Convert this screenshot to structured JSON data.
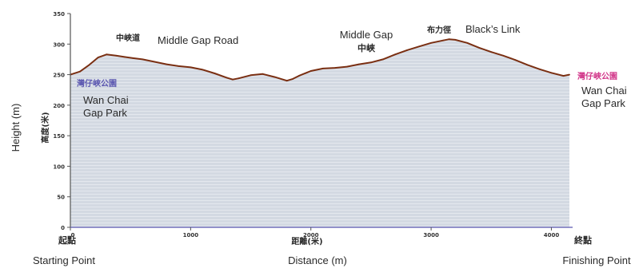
{
  "chart_data": {
    "type": "area",
    "x_unit_label_zh": "距離(米)",
    "y_unit_label_zh": "高度(米)",
    "xlabel": "Distance (m)",
    "ylabel": "Height (m)",
    "xlim": [
      0,
      4150
    ],
    "ylim": [
      0,
      350
    ],
    "x_ticks": [
      0,
      1000,
      2000,
      3000,
      4000
    ],
    "y_ticks": [
      0,
      50,
      100,
      150,
      200,
      250,
      300,
      350
    ],
    "x": [
      0,
      80,
      150,
      230,
      300,
      380,
      450,
      520,
      600,
      700,
      800,
      900,
      1000,
      1100,
      1200,
      1300,
      1350,
      1400,
      1500,
      1600,
      1700,
      1800,
      1850,
      1900,
      2000,
      2100,
      2200,
      2300,
      2400,
      2500,
      2600,
      2700,
      2800,
      2900,
      3000,
      3100,
      3150,
      3200,
      3300,
      3400,
      3500,
      3600,
      3700,
      3800,
      3900,
      4000,
      4100,
      4150
    ],
    "y": [
      250,
      255,
      265,
      278,
      283,
      281,
      279,
      277,
      275,
      271,
      267,
      264,
      262,
      258,
      252,
      245,
      242,
      244,
      249,
      251,
      246,
      240,
      243,
      248,
      256,
      260,
      261,
      263,
      267,
      270,
      275,
      283,
      290,
      296,
      302,
      306,
      308,
      307,
      302,
      294,
      287,
      281,
      274,
      266,
      259,
      253,
      248,
      250
    ],
    "line_color": "#7a2f12",
    "fill_color": "#cfd5df",
    "axis_color": "#5b57b0"
  },
  "annotations": {
    "middle_gap_road_zh": "中峽道",
    "middle_gap_road_en": "Middle Gap Road",
    "middle_gap_en": "Middle Gap",
    "middle_gap_zh": "中峽",
    "blacks_link_zh": "布力徑",
    "blacks_link_en": "Black’s Link",
    "start_park_zh": "灣仔峽公園",
    "start_park_en": [
      "Wan Chai",
      "Gap Park"
    ],
    "end_park_zh": "灣仔峽公園",
    "end_park_en": [
      "Wan Chai",
      "Gap Park"
    ],
    "start_zh": "起點",
    "start_en": "Starting Point",
    "finish_zh": "終點",
    "finish_en": "Finishing Point"
  }
}
